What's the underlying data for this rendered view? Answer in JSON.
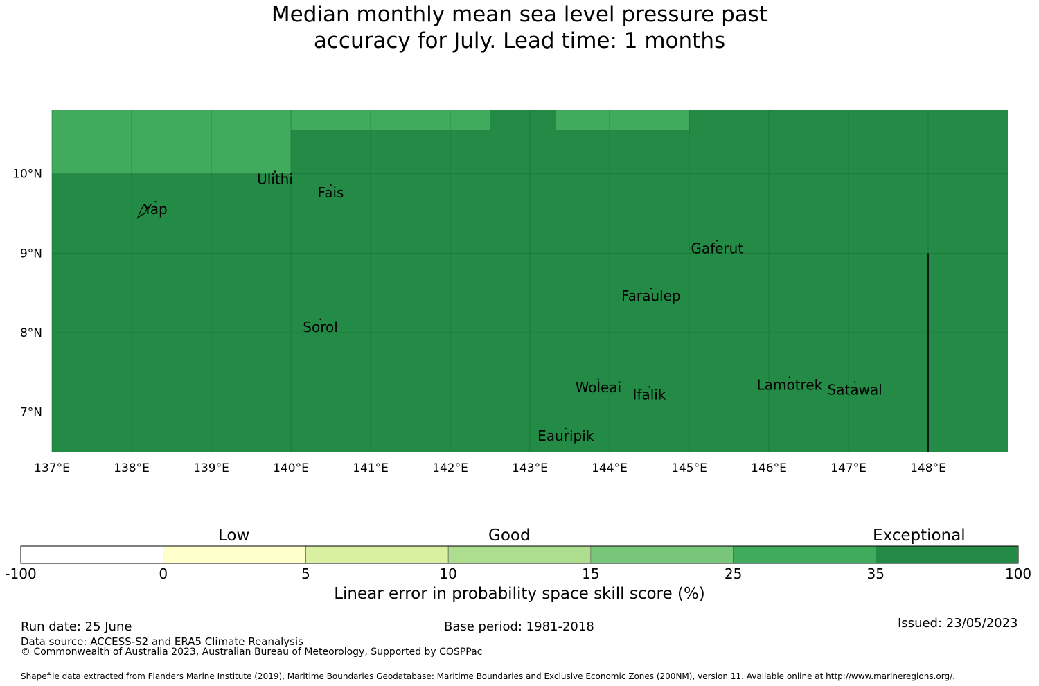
{
  "title_line1": "Median monthly mean sea level pressure past",
  "title_line2": "accuracy for July. Lead time: 1 months",
  "map": {
    "lon_range": [
      137,
      149
    ],
    "lat_range": [
      6.5,
      10.8
    ],
    "lon_ticks": [
      "137°E",
      "138°E",
      "139°E",
      "140°E",
      "141°E",
      "142°E",
      "143°E",
      "144°E",
      "145°E",
      "146°E",
      "147°E",
      "148°E"
    ],
    "lat_ticks": [
      "10°N",
      "9°N",
      "8°N",
      "7°N"
    ],
    "grid": true,
    "base_color": "#238b45",
    "lighter_regions": [
      {
        "lon": [
          137,
          140
        ],
        "lat": [
          10.0,
          10.8
        ],
        "color": "#41ab5d",
        "category": "25 to 35"
      },
      {
        "lon": [
          140,
          142.5
        ],
        "lat": [
          10.55,
          10.8
        ],
        "color": "#41ab5d",
        "category": "25 to 35"
      },
      {
        "lon": [
          143.33,
          145
        ],
        "lat": [
          10.55,
          10.8
        ],
        "color": "#41ab5d",
        "category": "25 to 35"
      }
    ],
    "places": [
      {
        "name": "Ulithi",
        "lon": 139.8,
        "lat": 9.87
      },
      {
        "name": "Fais",
        "lon": 140.5,
        "lat": 9.7
      },
      {
        "name": "Yap",
        "lon": 138.3,
        "lat": 9.49
      },
      {
        "name": "Gaferut",
        "lon": 145.35,
        "lat": 9.0
      },
      {
        "name": "Faraulep",
        "lon": 144.52,
        "lat": 8.4
      },
      {
        "name": "Sorol",
        "lon": 140.37,
        "lat": 8.01
      },
      {
        "name": "Woleai",
        "lon": 143.86,
        "lat": 7.25
      },
      {
        "name": "Ifalik",
        "lon": 144.5,
        "lat": 7.16
      },
      {
        "name": "Lamotrek",
        "lon": 146.26,
        "lat": 7.28
      },
      {
        "name": "Satawal",
        "lon": 147.08,
        "lat": 7.22
      },
      {
        "name": "Eauripik",
        "lon": 143.45,
        "lat": 6.64
      }
    ],
    "eez_line": {
      "lon": 148.0,
      "lat": [
        6.5,
        9.0
      ]
    }
  },
  "colorbar": {
    "categories": [
      "Low",
      "Good",
      "Exceptional"
    ],
    "bounds": [
      "-100",
      "0",
      "5",
      "10",
      "15",
      "25",
      "35",
      "100"
    ],
    "colors": [
      "#ffffff",
      "#ffffcc",
      "#d9f0a3",
      "#addd8e",
      "#78c679",
      "#41ab5d",
      "#238b45"
    ],
    "label": "Linear error in probability space skill score (%)"
  },
  "footer": {
    "run_date": "Run date: 25 June",
    "base_period": "Base period: 1981-2018",
    "issued": "Issued: 23/05/2023",
    "data_source": "Data source: ACCESS-S2 and ERA5 Climate Reanalysis",
    "copyright": "© Commonwealth of Australia 2023, Australian Bureau of Meteorology, Supported by COSPPac",
    "shapefile": "Shapefile data extracted from Flanders Marine Institute (2019), Maritime Boundaries Geodatabase: Maritime Boundaries and Exclusive Economic Zones (200NM), version 11. Available online at http://www.marineregions.org/."
  }
}
